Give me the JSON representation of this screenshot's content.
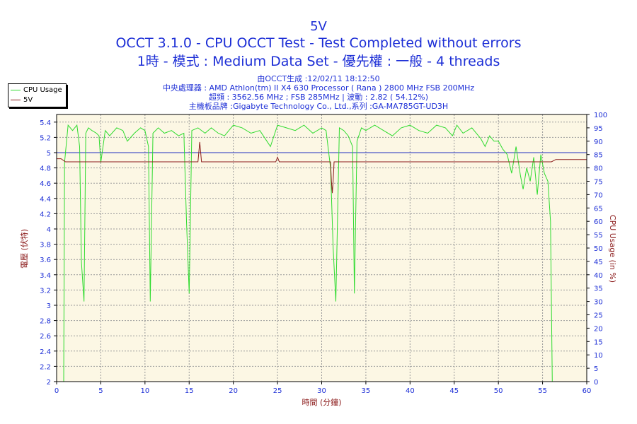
{
  "header": {
    "title": "5V",
    "subtitle1": "OCCT 3.1.0 - CPU OCCT Test - Test Completed without errors",
    "subtitle2": "1時 - 模式 : Medium Data Set - 優先權 : 一般 - 4 threads"
  },
  "info": {
    "line1": "由OCCT生成 :12/02/11 18:12:50",
    "line2": "中央處理器 : AMD Athlon(tm) II X4 630 Processor ( Rana ) 2800 MHz FSB 200MHz",
    "line3": "超頻 : 3562.56 MHz ; FSB 285MHz | 波動 : 2.82 ( 54.12%)",
    "line4": "主機板品牌 :Gigabyte Technology Co., Ltd.,系列 :GA-MA785GT-UD3H"
  },
  "legend": {
    "items": [
      "CPU Usage",
      "5V"
    ]
  },
  "colors": {
    "cpu": "#2fdb2f",
    "volt": "#8b1a1a",
    "ref": "#1f2fbf",
    "axis_text": "#1c2ed6",
    "plot_bg": "#fcf7e4"
  },
  "chart_data": {
    "type": "line",
    "xlabel": "時間 (分鐘)",
    "ylabel_left": "電壓 (伏特)",
    "ylabel_right": "CPU Usage (in %)",
    "xlim": [
      0,
      60
    ],
    "ylim_left": [
      2,
      5.5
    ],
    "ylim_right": [
      0,
      100
    ],
    "x_ticks": [
      0,
      5,
      10,
      15,
      20,
      25,
      30,
      35,
      40,
      45,
      50,
      55,
      60
    ],
    "y_left_ticks": [
      "2",
      "2.2",
      "2.4",
      "2.6",
      "2.8",
      "3",
      "3.2",
      "3.4",
      "3.6",
      "3.8",
      "4",
      "4.2",
      "4.4",
      "4.6",
      "4.8",
      "5",
      "5.2",
      "5.4"
    ],
    "y_right_ticks": [
      "0",
      "5",
      "10",
      "15",
      "20",
      "25",
      "30",
      "35",
      "40",
      "45",
      "50",
      "55",
      "60",
      "65",
      "70",
      "75",
      "80",
      "85",
      "90",
      "95",
      "100"
    ],
    "grid": true,
    "reference_line": 5,
    "series": [
      {
        "name": "CPU Usage",
        "axis": "right",
        "x": [
          0,
          0.8,
          0.9,
          1.3,
          1.8,
          2.3,
          2.6,
          2.8,
          3.1,
          3.3,
          3.6,
          4,
          4.5,
          4.8,
          5,
          5.5,
          6,
          6.8,
          7.5,
          8,
          8.8,
          9.5,
          10,
          10.4,
          10.6,
          10.9,
          11.5,
          12.2,
          13,
          13.8,
          14.4,
          14.7,
          15,
          15.3,
          16,
          16.8,
          17.5,
          18.3,
          19,
          20,
          21,
          22,
          23,
          23.8,
          24.2,
          25,
          26,
          27,
          28,
          29,
          30,
          30.5,
          31,
          31.3,
          31.6,
          32,
          32.5,
          33,
          33.5,
          33.7,
          34,
          34.5,
          35,
          36,
          37,
          38,
          39,
          40,
          41,
          42,
          43,
          44,
          44.8,
          45.3,
          46,
          47,
          48,
          48.5,
          49,
          49.5,
          50,
          50.5,
          51,
          51.5,
          52,
          52.5,
          52.8,
          53.2,
          53.6,
          54,
          54.4,
          54.8,
          55.2,
          55.6,
          55.9,
          56.1,
          60
        ],
        "y": [
          0,
          0,
          82,
          96,
          94,
          96,
          88,
          45,
          30,
          93,
          95,
          94,
          93,
          92,
          82,
          94,
          92,
          95,
          94,
          90,
          93,
          95,
          94,
          88,
          30,
          93,
          95,
          93,
          94,
          92,
          93,
          60,
          33,
          94,
          95,
          93,
          95,
          93,
          92,
          96,
          95,
          93,
          94,
          90,
          88,
          96,
          95,
          94,
          96,
          93,
          95,
          94,
          80,
          50,
          30,
          95,
          94,
          92,
          88,
          33,
          90,
          95,
          94,
          96,
          94,
          92,
          95,
          96,
          94,
          93,
          96,
          95,
          92,
          96,
          93,
          95,
          91,
          88,
          92,
          90,
          90,
          87,
          85,
          78,
          88,
          77,
          72,
          80,
          75,
          84,
          70,
          85,
          78,
          75,
          60,
          0,
          0
        ]
      },
      {
        "name": "5V",
        "axis": "left",
        "x": [
          0,
          0.5,
          1,
          16,
          16.2,
          16.4,
          24.8,
          25,
          25.2,
          31,
          31.1,
          31.2,
          31.3,
          31.4,
          56,
          56.5,
          60
        ],
        "y": [
          4.92,
          4.92,
          4.88,
          4.88,
          5.14,
          4.88,
          4.88,
          4.94,
          4.88,
          4.88,
          4.63,
          4.47,
          4.63,
          4.88,
          4.88,
          4.91,
          4.91
        ]
      }
    ]
  }
}
